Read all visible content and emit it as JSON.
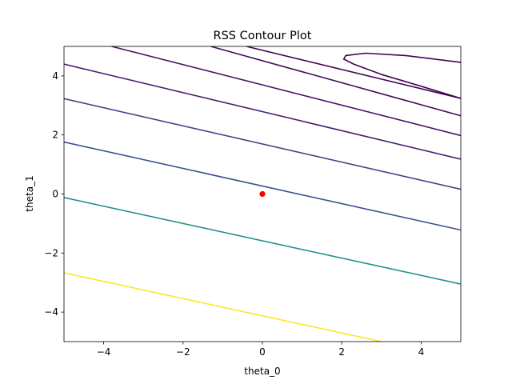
{
  "chart_data": {
    "type": "contour",
    "title": "RSS Contour Plot",
    "xlabel": "theta_0",
    "ylabel": "theta_1",
    "xlim": [
      -5,
      5
    ],
    "ylim": [
      -5,
      5
    ],
    "x_ticks": [
      -4,
      -2,
      0,
      2,
      4
    ],
    "y_ticks": [
      -4,
      -2,
      0,
      2,
      4
    ],
    "x_tick_labels": [
      "−4",
      "−2",
      "0",
      "2",
      "4"
    ],
    "y_tick_labels": [
      "−4",
      "−2",
      "0",
      "2",
      "4"
    ],
    "grid": false,
    "contours": [
      {
        "color": "#fde725",
        "points": [
          [
            -5,
            -2.67
          ],
          [
            3.0,
            -5.0
          ]
        ]
      },
      {
        "color": "#21918c",
        "points": [
          [
            -5,
            -0.12
          ],
          [
            5,
            -3.05
          ]
        ]
      },
      {
        "color": "#3b528b",
        "points": [
          [
            -5,
            1.76
          ],
          [
            5,
            -1.22
          ]
        ]
      },
      {
        "color": "#414487",
        "points": [
          [
            -5,
            3.23
          ],
          [
            5,
            0.16
          ]
        ]
      },
      {
        "color": "#481f71",
        "points": [
          [
            -5,
            4.4
          ],
          [
            5,
            1.18
          ]
        ]
      },
      {
        "color": "#471365",
        "points": [
          [
            -3.8,
            5.0
          ],
          [
            5,
            1.98
          ]
        ]
      },
      {
        "color": "#440f58",
        "points": [
          [
            -1.3,
            5.0
          ],
          [
            5,
            2.65
          ]
        ]
      },
      {
        "color": "#440154",
        "points": [
          [
            -0.4,
            5.0
          ],
          [
            5,
            3.24
          ]
        ]
      },
      {
        "color": "#440154",
        "points": [
          [
            5,
            4.46
          ],
          [
            3.6,
            4.69
          ],
          [
            2.6,
            4.77
          ],
          [
            2.1,
            4.69
          ],
          [
            2.05,
            4.57
          ],
          [
            2.3,
            4.4
          ],
          [
            3.0,
            4.05
          ],
          [
            4.0,
            3.65
          ],
          [
            5,
            3.24
          ]
        ]
      }
    ],
    "points": [
      {
        "x": 0,
        "y": 0,
        "color": "#ff0000"
      }
    ]
  }
}
